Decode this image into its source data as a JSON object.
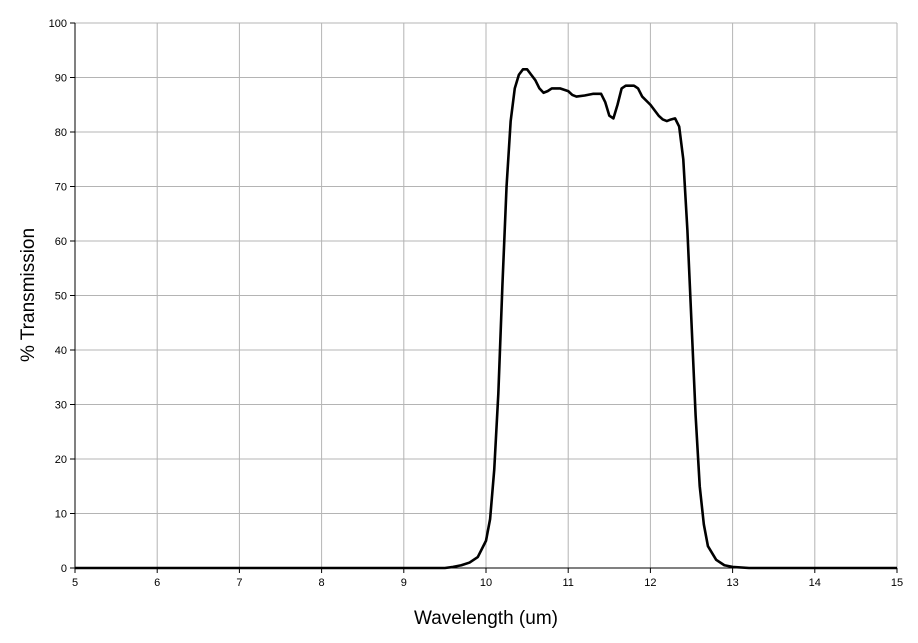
{
  "chart_data": {
    "type": "line",
    "xlabel": "Wavelength (um)",
    "ylabel": "% Transmission",
    "x": [
      5,
      6,
      7,
      8,
      9,
      9.5,
      9.6,
      9.7,
      9.8,
      9.9,
      10.0,
      10.05,
      10.1,
      10.15,
      10.2,
      10.25,
      10.3,
      10.35,
      10.4,
      10.45,
      10.5,
      10.55,
      10.6,
      10.65,
      10.7,
      10.75,
      10.8,
      10.9,
      11.0,
      11.05,
      11.1,
      11.2,
      11.3,
      11.4,
      11.45,
      11.5,
      11.55,
      11.6,
      11.65,
      11.7,
      11.8,
      11.85,
      11.9,
      12.0,
      12.1,
      12.15,
      12.2,
      12.25,
      12.3,
      12.35,
      12.4,
      12.45,
      12.5,
      12.55,
      12.6,
      12.65,
      12.7,
      12.8,
      12.9,
      13.0,
      13.2,
      14,
      15
    ],
    "series": [
      {
        "name": "% Transmission",
        "color": "#000000",
        "values": [
          0,
          0,
          0,
          0,
          0,
          0,
          0.2,
          0.5,
          1,
          2,
          5,
          9,
          18,
          32,
          52,
          70,
          82,
          88,
          90.5,
          91.5,
          91.5,
          90.5,
          89.5,
          88,
          87.2,
          87.5,
          88,
          88,
          87.5,
          86.8,
          86.5,
          86.7,
          87,
          87,
          85.5,
          83,
          82.5,
          85,
          88,
          88.5,
          88.5,
          88,
          86.5,
          85,
          83,
          82.3,
          82,
          82.3,
          82.5,
          81,
          75,
          62,
          45,
          28,
          15,
          8,
          4,
          1.5,
          0.5,
          0.2,
          0,
          0,
          0
        ]
      }
    ],
    "xlim": [
      5,
      15
    ],
    "xticks": [
      5,
      6,
      7,
      8,
      9,
      10,
      11,
      12,
      13,
      14,
      15
    ],
    "ylim": [
      0,
      100
    ],
    "yticks": [
      0,
      10,
      20,
      30,
      40,
      50,
      60,
      70,
      80,
      90,
      100
    ],
    "grid": true
  }
}
